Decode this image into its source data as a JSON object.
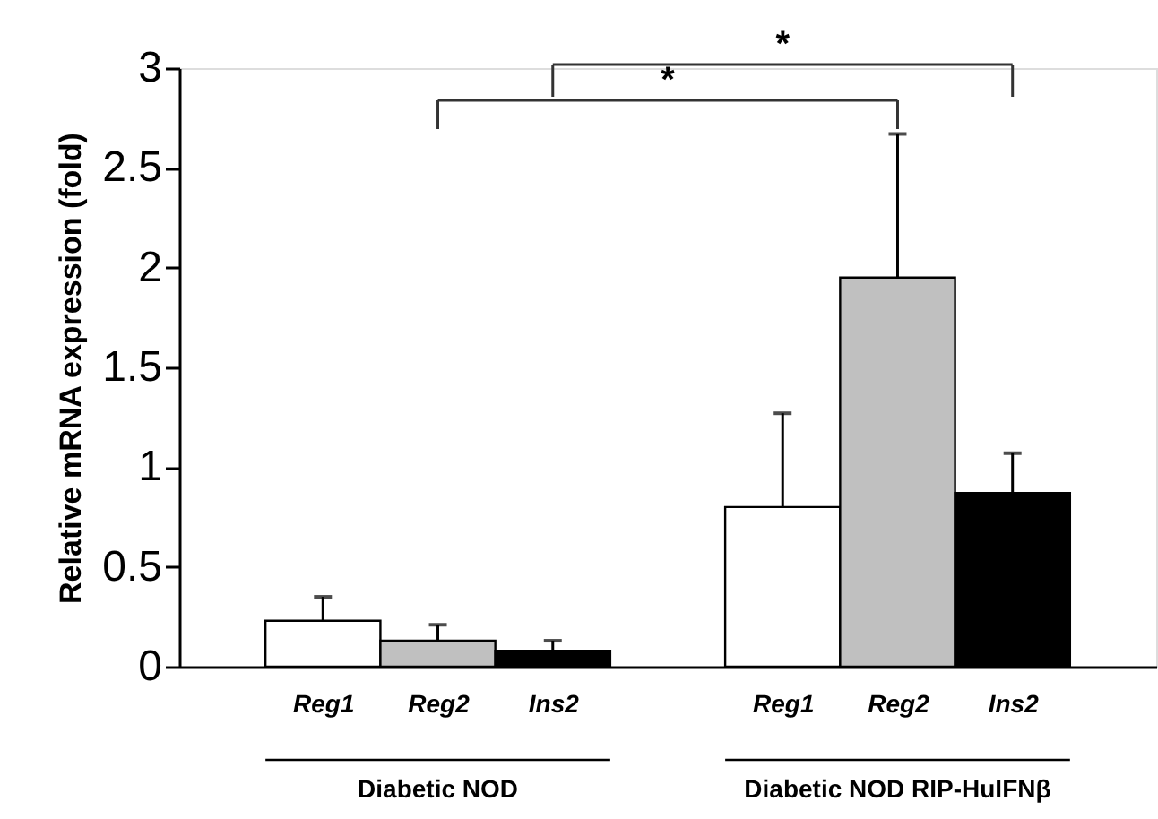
{
  "chart_data": {
    "type": "bar",
    "ylabel": "Relative mRNA expression (fold)",
    "categories": [
      "Reg1",
      "Reg2",
      "Ins2",
      "Reg1",
      "Reg2",
      "Ins2"
    ],
    "values": [
      0.23,
      0.13,
      0.08,
      0.8,
      1.95,
      0.87
    ],
    "colors": [
      "#ffffff",
      "#c0c0c0",
      "#000000",
      "#ffffff",
      "#c0c0c0",
      "#000000"
    ],
    "errors": [
      [
        0.23,
        0.35
      ],
      [
        0.13,
        0.21
      ],
      [
        0.08,
        0.13
      ],
      [
        0.8,
        1.27
      ],
      [
        1.95,
        2.67
      ],
      [
        0.87,
        1.07
      ]
    ],
    "ylim": [
      0,
      3
    ],
    "yticks": [
      0,
      0.5,
      1,
      1.5,
      2,
      2.5,
      3
    ],
    "grid": false,
    "annotations": [
      "*",
      "*",
      "Diabetic NOD",
      "Diabetic NOD RIP-HuIFNβ"
    ]
  }
}
